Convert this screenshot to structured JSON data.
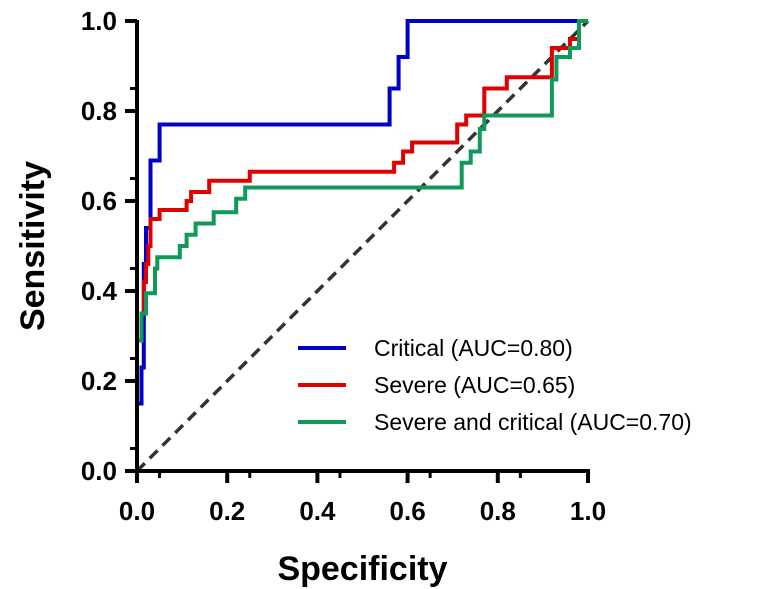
{
  "chart_data": {
    "type": "line",
    "title": "",
    "xlabel": "Specificity",
    "ylabel": "Sensitivity",
    "xlim": [
      0,
      1
    ],
    "ylim": [
      0,
      1
    ],
    "x_ticks": [
      "0.0",
      "0.2",
      "0.4",
      "0.6",
      "0.8",
      "1.0"
    ],
    "y_ticks": [
      "0.0",
      "0.2",
      "0.4",
      "0.6",
      "0.8",
      "1.0"
    ],
    "grid": false,
    "legend_position": "bottom-right",
    "reference_line": {
      "style": "dashed",
      "color": "#333333",
      "from": [
        0,
        0
      ],
      "to": [
        1,
        1
      ]
    },
    "series": [
      {
        "name": "Critical (AUC=0.80)",
        "color": "#0000c8",
        "points": [
          [
            0,
            0
          ],
          [
            0,
            0.15
          ],
          [
            0.01,
            0.15
          ],
          [
            0.01,
            0.23
          ],
          [
            0.015,
            0.23
          ],
          [
            0.015,
            0.46
          ],
          [
            0.02,
            0.46
          ],
          [
            0.02,
            0.54
          ],
          [
            0.03,
            0.54
          ],
          [
            0.03,
            0.69
          ],
          [
            0.05,
            0.69
          ],
          [
            0.05,
            0.77
          ],
          [
            0.56,
            0.77
          ],
          [
            0.56,
            0.85
          ],
          [
            0.58,
            0.85
          ],
          [
            0.58,
            0.92
          ],
          [
            0.6,
            0.92
          ],
          [
            0.6,
            1.0
          ],
          [
            1.0,
            1.0
          ]
        ]
      },
      {
        "name": "Severe (AUC=0.65)",
        "color": "#e00000",
        "points": [
          [
            0,
            0
          ],
          [
            0,
            0.29
          ],
          [
            0.01,
            0.29
          ],
          [
            0.01,
            0.35
          ],
          [
            0.015,
            0.35
          ],
          [
            0.015,
            0.42
          ],
          [
            0.02,
            0.42
          ],
          [
            0.02,
            0.46
          ],
          [
            0.025,
            0.46
          ],
          [
            0.025,
            0.5
          ],
          [
            0.03,
            0.5
          ],
          [
            0.03,
            0.56
          ],
          [
            0.05,
            0.56
          ],
          [
            0.05,
            0.58
          ],
          [
            0.11,
            0.58
          ],
          [
            0.11,
            0.6
          ],
          [
            0.12,
            0.6
          ],
          [
            0.12,
            0.62
          ],
          [
            0.16,
            0.62
          ],
          [
            0.16,
            0.645
          ],
          [
            0.25,
            0.645
          ],
          [
            0.25,
            0.665
          ],
          [
            0.57,
            0.665
          ],
          [
            0.57,
            0.685
          ],
          [
            0.59,
            0.685
          ],
          [
            0.59,
            0.71
          ],
          [
            0.61,
            0.71
          ],
          [
            0.61,
            0.73
          ],
          [
            0.71,
            0.73
          ],
          [
            0.71,
            0.77
          ],
          [
            0.73,
            0.77
          ],
          [
            0.73,
            0.79
          ],
          [
            0.77,
            0.79
          ],
          [
            0.77,
            0.85
          ],
          [
            0.82,
            0.85
          ],
          [
            0.82,
            0.875
          ],
          [
            0.92,
            0.875
          ],
          [
            0.92,
            0.94
          ],
          [
            0.96,
            0.94
          ],
          [
            0.96,
            0.96
          ],
          [
            0.98,
            0.96
          ],
          [
            0.98,
            1.0
          ],
          [
            1.0,
            1.0
          ]
        ]
      },
      {
        "name": "Severe and critical (AUC=0.70)",
        "color": "#109a5a",
        "points": [
          [
            0,
            0
          ],
          [
            0,
            0.29
          ],
          [
            0.01,
            0.29
          ],
          [
            0.01,
            0.35
          ],
          [
            0.02,
            0.35
          ],
          [
            0.02,
            0.395
          ],
          [
            0.04,
            0.395
          ],
          [
            0.04,
            0.45
          ],
          [
            0.045,
            0.45
          ],
          [
            0.045,
            0.475
          ],
          [
            0.095,
            0.475
          ],
          [
            0.095,
            0.5
          ],
          [
            0.11,
            0.5
          ],
          [
            0.11,
            0.525
          ],
          [
            0.13,
            0.525
          ],
          [
            0.13,
            0.55
          ],
          [
            0.17,
            0.55
          ],
          [
            0.17,
            0.575
          ],
          [
            0.22,
            0.575
          ],
          [
            0.22,
            0.605
          ],
          [
            0.24,
            0.605
          ],
          [
            0.24,
            0.63
          ],
          [
            0.72,
            0.63
          ],
          [
            0.72,
            0.685
          ],
          [
            0.74,
            0.685
          ],
          [
            0.74,
            0.71
          ],
          [
            0.76,
            0.71
          ],
          [
            0.76,
            0.76
          ],
          [
            0.77,
            0.76
          ],
          [
            0.77,
            0.79
          ],
          [
            0.92,
            0.79
          ],
          [
            0.92,
            0.87
          ],
          [
            0.93,
            0.87
          ],
          [
            0.93,
            0.92
          ],
          [
            0.96,
            0.92
          ],
          [
            0.96,
            0.94
          ],
          [
            0.98,
            0.94
          ],
          [
            0.98,
            1.0
          ],
          [
            1.0,
            1.0
          ]
        ]
      }
    ]
  }
}
